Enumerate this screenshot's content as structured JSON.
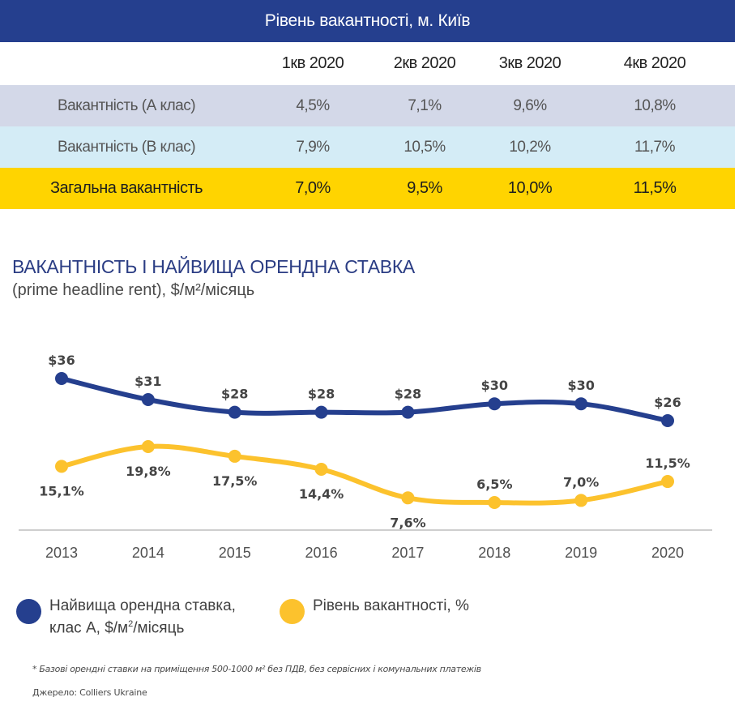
{
  "table": {
    "title": "Рівень вакантності,  м. Київ",
    "header": [
      "",
      "1кв 2020",
      "2кв 2020",
      "3кв 2020",
      "4кв 2020"
    ],
    "rows": [
      {
        "label": "Вакантність (А клас)",
        "values": [
          "4,5%",
          "7,1%",
          "9,6%",
          "10,8%"
        ]
      },
      {
        "label": "Вакантність (В клас)",
        "values": [
          "7,9%",
          "10,5%",
          "10,2%",
          "11,7%"
        ]
      },
      {
        "label": "Загальна вакантність",
        "values": [
          "7,0%",
          "9,5%",
          "10,0%",
          "11,5%"
        ]
      }
    ],
    "colors": {
      "title_bg": "#253f8e",
      "row_a": "#d3d8e8",
      "row_b": "#d4ecf6",
      "row_total": "#ffd400"
    }
  },
  "chart_data": {
    "type": "line",
    "title": "ВАКАНТНІСТЬ І НАЙВИЩА ОРЕНДНА СТАВКА",
    "subtitle": "(prime headline rent), $/м²/місяць",
    "xlabel": "",
    "ylabel": "",
    "grid": false,
    "legend_position": "bottom-left",
    "x": [
      "2013",
      "2014",
      "2015",
      "2016",
      "2017",
      "2018",
      "2019",
      "2020"
    ],
    "series": [
      {
        "name": "Найвища орендна ставка, клас А, $/м²/місяць",
        "color": "#253f8e",
        "values": [
          36,
          31,
          28,
          28,
          28,
          30,
          30,
          26
        ],
        "labels": [
          "$36",
          "$31",
          "$28",
          "$28",
          "$28",
          "$30",
          "$30",
          "$26"
        ],
        "label_position": "above"
      },
      {
        "name": "Рівень вакантності, %",
        "color": "#fcc22d",
        "values": [
          15.1,
          19.8,
          17.5,
          14.4,
          7.6,
          6.5,
          7.0,
          11.5
        ],
        "labels": [
          "15,1%",
          "19,8%",
          "17,5%",
          "14,4%",
          "7,6%",
          "6,5%",
          "7,0%",
          "11,5%"
        ],
        "label_position": [
          "below",
          "below",
          "below",
          "below",
          "below",
          "above",
          "above",
          "above"
        ]
      }
    ]
  },
  "legend": {
    "rent_line1": "Найвища орендна ставка,",
    "rent_line2_pre": "клас А, $/м",
    "rent_line2_sup": "2",
    "rent_line2_post": "/місяць",
    "vacancy": "Рівень вакантності, %"
  },
  "footnote": "* Базові орендні ставки на приміщення 500-1000 м² без ПДВ, без сервісних і комунальних платежів",
  "source": "Джерело: Colliers Ukraine"
}
